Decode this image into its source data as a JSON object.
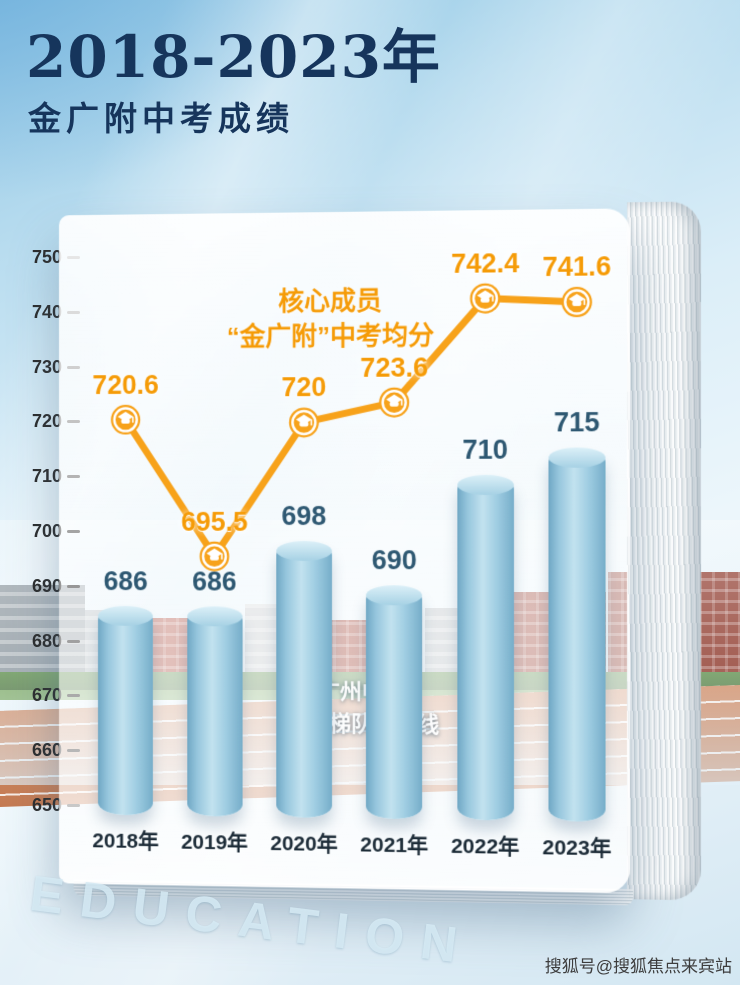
{
  "page": {
    "title": "2018-2023年",
    "subtitle": "金广附中考成绩",
    "watermark": "搜狐号@搜狐焦点来宾站",
    "background_word": "EDUCATION"
  },
  "colors": {
    "title_navy": "#16355c",
    "bar_blue": "#9fcde2",
    "line_orange": "#f7a21a",
    "bar_value_text": "#2e5872"
  },
  "chart_data": {
    "type": "bar",
    "title": "2018-2023年 金广附中考成绩",
    "categories": [
      "2018年",
      "2019年",
      "2020年",
      "2021年",
      "2022年",
      "2023年"
    ],
    "series": [
      {
        "name": "广州中考第一梯队分数线",
        "type": "bar",
        "values": [
          686,
          686,
          698,
          690,
          710,
          715
        ],
        "labels": [
          "686",
          "686",
          "698",
          "690",
          "710",
          "715"
        ],
        "color": "#9fcde2"
      },
      {
        "name": "核心成员“金广附”中考均分",
        "type": "line",
        "values": [
          720.6,
          695.5,
          720,
          723.6,
          742.4,
          741.6
        ],
        "labels": [
          "720.6",
          "695.5",
          "720",
          "723.6",
          "742.4",
          "741.6"
        ],
        "color": "#f7a21a",
        "marker": "graduation-cap"
      }
    ],
    "ylim": [
      650,
      750
    ],
    "yticks": [
      650,
      660,
      670,
      680,
      690,
      700,
      710,
      720,
      730,
      740,
      750
    ],
    "grid": false,
    "legend_position": "annotations-on-plot",
    "annotations": {
      "line_label_1": "核心成员",
      "line_label_2": "“金广附”中考均分",
      "bar_label_1": "广州中考",
      "bar_label_2": "第一梯队分数线"
    }
  }
}
